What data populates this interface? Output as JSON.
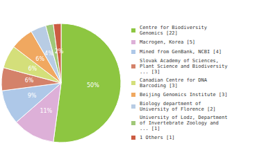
{
  "chart_data": {
    "type": "pie",
    "categories": [
      "Centre for Biodiversity\nGenomics [22]",
      "Macrogen, Korea [5]",
      "Mined from GenBank, NCBI [4]",
      "Slovak Academy of Sciences,\nPlant Science and Biodiversity\n... [3]",
      "Canadian Centre for DNA\nBarcoding [3]",
      "Beijing Genomics Institute [3]",
      "Biology department of\nUniversity of Florence [2]",
      "University of Lodz, Department\nof Invertebrate Zoology and\n... [1]",
      "1 Others [1]"
    ],
    "values": [
      50,
      11,
      9,
      6,
      6,
      6,
      4,
      2,
      2
    ],
    "value_labels": [
      "50%",
      "11%",
      "9%",
      "6%",
      "6%",
      "6%",
      "4%",
      "2%",
      "2%"
    ],
    "colors": [
      "#8dc641",
      "#ddb0d8",
      "#aec8e8",
      "#d4826a",
      "#d4df7a",
      "#f0a860",
      "#b8cce4",
      "#a0c878",
      "#cc5c42"
    ],
    "data_labels": true,
    "legend": "right"
  }
}
